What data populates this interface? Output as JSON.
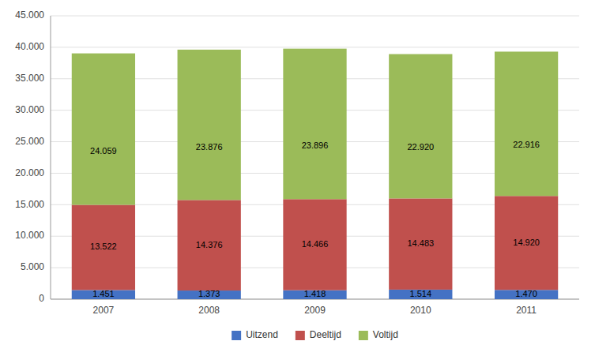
{
  "chart_data": {
    "type": "bar",
    "stacked": true,
    "data_labels": true,
    "grid": true,
    "legend": "bottom",
    "categories": [
      "2007",
      "2008",
      "2009",
      "2010",
      "2011"
    ],
    "series": [
      {
        "name": "Uitzend",
        "color": "#4472C4",
        "values": [
          1451,
          1373,
          1418,
          1514,
          1470
        ],
        "value_labels": [
          "1.451",
          "1.373",
          "1.418",
          "1.514",
          "1.470"
        ]
      },
      {
        "name": "Deeltijd",
        "color": "#C0504D",
        "values": [
          13522,
          14376,
          14466,
          14483,
          14920
        ],
        "value_labels": [
          "13.522",
          "14.376",
          "14.466",
          "14.483",
          "14.920"
        ]
      },
      {
        "name": "Voltijd",
        "color": "#9BBB59",
        "values": [
          24059,
          23876,
          23896,
          22920,
          22916
        ],
        "value_labels": [
          "24.059",
          "23.876",
          "23.896",
          "22.920",
          "22.916"
        ]
      }
    ],
    "ylim": [
      0,
      45000
    ],
    "yticks": [
      0,
      {
        "value": 5000,
        "label": "5.000"
      },
      {
        "value": 10000,
        "label": "10.000"
      },
      {
        "value": 15000,
        "label": "15.000"
      },
      {
        "value": 20000,
        "label": "20.000"
      },
      {
        "value": 25000,
        "label": "25.000"
      },
      {
        "value": 30000,
        "label": "30.000"
      },
      {
        "value": 35000,
        "label": "35.000"
      },
      {
        "value": 40000,
        "label": "40.000"
      },
      {
        "value": 45000,
        "label": "45.000"
      }
    ]
  }
}
